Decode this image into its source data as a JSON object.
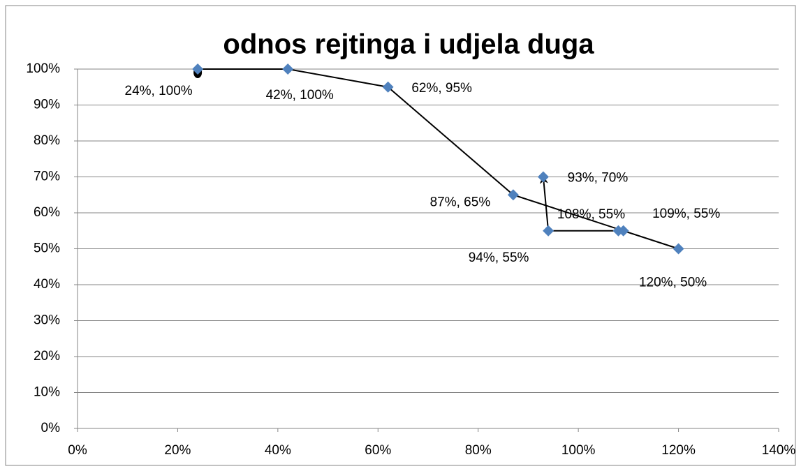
{
  "chart_data": {
    "type": "scatter",
    "title": "odnos rejtinga i udjela duga",
    "series": [
      {
        "color": "#4f81bd",
        "x": [
          24,
          42,
          62,
          87,
          120,
          109,
          108,
          94,
          93
        ],
        "values": [
          100,
          100,
          95,
          65,
          50,
          55,
          55,
          55,
          70
        ],
        "value_labels": [
          "24%, 100%",
          "42%, 100%",
          "62%, 95%",
          "87%, 65%",
          "120%, 50%",
          "109%, 55%",
          "108%, 55%",
          "94%, 55%",
          "93%, 70%"
        ]
      }
    ],
    "xlim": [
      0,
      140
    ],
    "xticks": [
      {
        "value": 0,
        "label": "0%"
      },
      {
        "value": 20,
        "label": "20%"
      },
      {
        "value": 40,
        "label": "40%"
      },
      {
        "value": 60,
        "label": "60%"
      },
      {
        "value": 80,
        "label": "80%"
      },
      {
        "value": 100,
        "label": "100%"
      },
      {
        "value": 120,
        "label": "120%"
      },
      {
        "value": 140,
        "label": "140%"
      }
    ],
    "ylim": [
      0,
      100
    ],
    "yticks": [
      {
        "value": 0,
        "label": "0%"
      },
      {
        "value": 10,
        "label": "10%"
      },
      {
        "value": 20,
        "label": "20%"
      },
      {
        "value": 30,
        "label": "30%"
      },
      {
        "value": 40,
        "label": "40%"
      },
      {
        "value": 50,
        "label": "50%"
      },
      {
        "value": 60,
        "label": "60%"
      },
      {
        "value": 70,
        "label": "70%"
      },
      {
        "value": 80,
        "label": "80%"
      },
      {
        "value": 90,
        "label": "90%"
      },
      {
        "value": 100,
        "label": "100%"
      }
    ],
    "grid": true
  }
}
